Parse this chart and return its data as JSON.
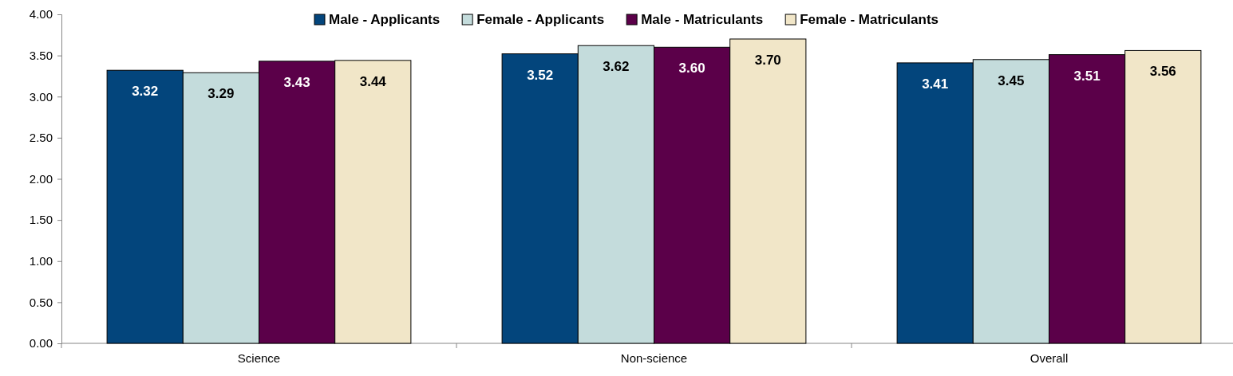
{
  "chart_data": {
    "type": "bar",
    "categories": [
      "Science",
      "Non-science",
      "Overall"
    ],
    "series": [
      {
        "name": "Male - Applicants",
        "color": "#03457c",
        "values": [
          3.32,
          3.52,
          3.41
        ]
      },
      {
        "name": "Female - Applicants",
        "color": "#c4dcdc",
        "values": [
          3.29,
          3.62,
          3.45
        ]
      },
      {
        "name": "Male - Matriculants",
        "color": "#5b0049",
        "values": [
          3.43,
          3.6,
          3.51
        ]
      },
      {
        "name": "Female - Matriculants",
        "color": "#f1e6c8",
        "values": [
          3.44,
          3.7,
          3.56
        ]
      }
    ],
    "ylim": [
      0,
      4
    ],
    "yticks": [
      {
        "value": 0,
        "label": "0.00"
      },
      {
        "value": 0.5,
        "label": "0.50"
      },
      {
        "value": 1,
        "label": "1.00"
      },
      {
        "value": 1.5,
        "label": "1.50"
      },
      {
        "value": 2,
        "label": "2.00"
      },
      {
        "value": 2.5,
        "label": "2.50"
      },
      {
        "value": 3,
        "label": "3.00"
      },
      {
        "value": 3.5,
        "label": "3.50"
      },
      {
        "value": 4,
        "label": "4.00"
      }
    ],
    "value_labels": [
      [
        "3.32",
        "3.52",
        "3.41"
      ],
      [
        "3.29",
        "3.62",
        "3.45"
      ],
      [
        "3.43",
        "3.60",
        "3.51"
      ],
      [
        "3.44",
        "3.70",
        "3.56"
      ]
    ],
    "grid": false,
    "legend": "top"
  }
}
